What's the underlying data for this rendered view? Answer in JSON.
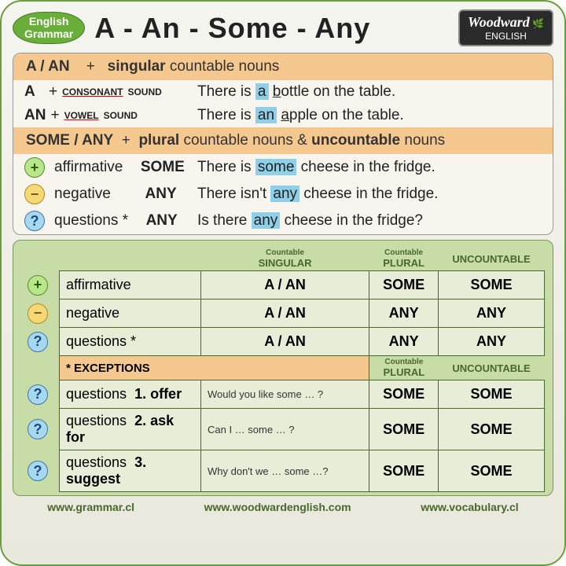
{
  "badge": {
    "l1": "English",
    "l2": "Grammar"
  },
  "title": "A - An - Some - Any",
  "logo": {
    "brand": "Woodward",
    "sub": "ENGLISH"
  },
  "bar1": {
    "left": "A / AN",
    "plus": "+",
    "right_b": "singular",
    "right": " countable nouns"
  },
  "r1": {
    "det": "A",
    "plus": "+",
    "sound": "CONSONANT",
    "ex_pre": "There is ",
    "hl": "a",
    "u": "b",
    "ex_post": "ottle on the table."
  },
  "r2": {
    "det": "AN",
    "plus": "+",
    "sound": "VOWEL",
    "ex_pre": "There is ",
    "hl": "an",
    "u": "a",
    "ex_post": "pple on the table."
  },
  "bar2": {
    "left": "SOME / ANY",
    "plus": "+",
    "right_b1": "plural",
    "right_mid": " countable nouns & ",
    "right_b2": "uncountable",
    "right_end": " nouns"
  },
  "r3": {
    "type": "affirmative",
    "word": "SOME",
    "ex_pre": "There is ",
    "hl": "some",
    "ex_post": " cheese in the fridge."
  },
  "r4": {
    "type": "negative",
    "word": "ANY",
    "ex_pre": "There isn't ",
    "hl": "any",
    "ex_post": " cheese in the fridge."
  },
  "r5": {
    "type": "questions *",
    "word": "ANY",
    "ex_pre": "Is there ",
    "hl": "any",
    "ex_post": " cheese in the fridge?"
  },
  "thead": {
    "c1_sup": "Countable",
    "c1": "SINGULAR",
    "c2_sup": "Countable",
    "c2": "PLURAL",
    "c3": "UNCOUNTABLE"
  },
  "trows": [
    {
      "sym": "+",
      "cls": "plus",
      "lbl": "affirmative",
      "c1": "A / AN",
      "c2": "SOME",
      "c3": "SOME"
    },
    {
      "sym": "−",
      "cls": "minus",
      "lbl": "negative",
      "c1": "A / AN",
      "c2": "ANY",
      "c3": "ANY"
    },
    {
      "sym": "?",
      "cls": "ques",
      "lbl": "questions *",
      "c1": "A / AN",
      "c2": "ANY",
      "c3": "ANY"
    }
  ],
  "exhdr": "* EXCEPTIONS",
  "thead2": {
    "c2_sup": "Countable",
    "c2": "PLURAL",
    "c3": "UNCOUNTABLE"
  },
  "erows": [
    {
      "lbl": "questions",
      "n": "1. offer",
      "ex": "Would you like some … ?",
      "c2": "SOME",
      "c3": "SOME"
    },
    {
      "lbl": "questions",
      "n": "2. ask for",
      "ex": "Can I … some … ?",
      "c2": "SOME",
      "c3": "SOME"
    },
    {
      "lbl": "questions",
      "n": "3. suggest",
      "ex": "Why don't we … some …?",
      "c2": "SOME",
      "c3": "SOME"
    }
  ],
  "footer": {
    "a": "www.grammar.cl",
    "b": "www.woodwardenglish.com",
    "c": "www.vocabulary.cl"
  }
}
